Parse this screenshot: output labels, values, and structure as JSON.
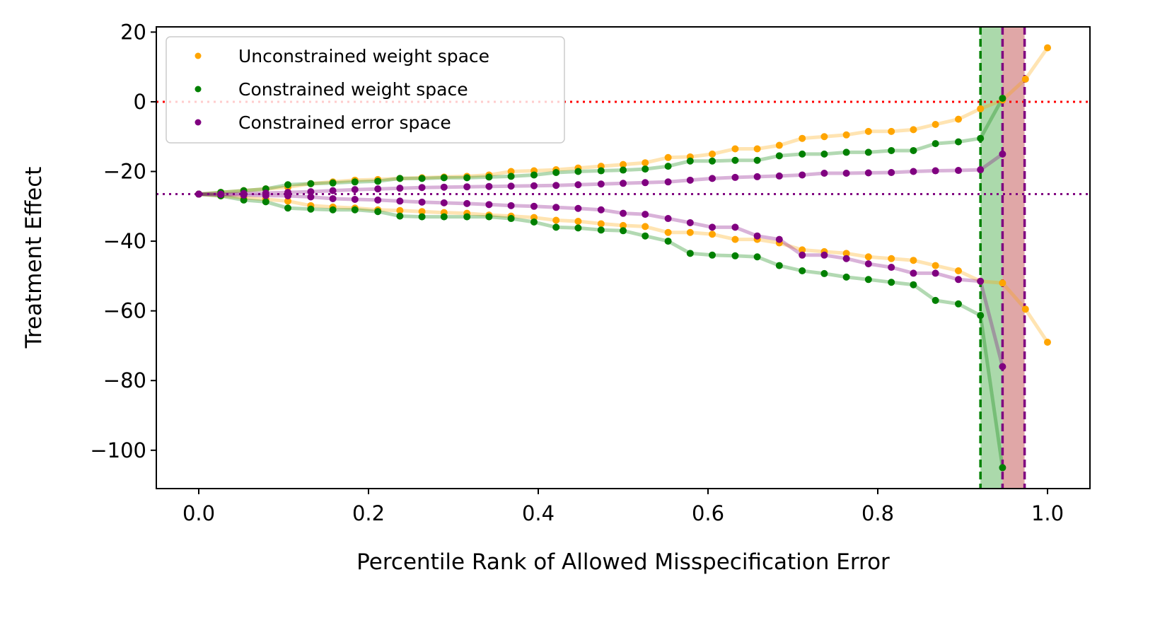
{
  "chart_data": {
    "type": "line",
    "xlabel": "Percentile Rank of Allowed Misspecification Error",
    "ylabel": "Treatment Effect",
    "xlim": [
      -0.05,
      1.05
    ],
    "ylim": [
      -111,
      21.5
    ],
    "xticks": [
      0.0,
      0.2,
      0.4,
      0.6,
      0.8,
      1.0
    ],
    "xtick_labels": [
      "0.0",
      "0.2",
      "0.4",
      "0.6",
      "0.8",
      "1.0"
    ],
    "yticks": [
      20,
      0,
      -20,
      -40,
      -60,
      -80,
      -100
    ],
    "ytick_labels": [
      "20",
      "0",
      "−20",
      "−40",
      "−60",
      "−80",
      "−100"
    ],
    "legend_position": "top-left",
    "reference_lines": [
      {
        "orientation": "horizontal",
        "y": 0,
        "color": "#ff0000",
        "style": "dotted"
      },
      {
        "orientation": "horizontal",
        "y": -26.5,
        "color": "#800080",
        "style": "dotted"
      },
      {
        "orientation": "vertical",
        "x": 0.921,
        "color": "#008000",
        "style": "dashed"
      },
      {
        "orientation": "vertical",
        "x": 0.947,
        "color": "#800080",
        "style": "dashed"
      },
      {
        "orientation": "vertical",
        "x": 0.973,
        "color": "#800080",
        "style": "dashed"
      }
    ],
    "shaded_regions": [
      {
        "x": [
          0.921,
          0.947
        ],
        "color": "#2ca02c"
      },
      {
        "x": [
          0.947,
          0.973
        ],
        "color": "#b22222"
      }
    ],
    "series": [
      {
        "name": "Unconstrained weight space",
        "color": "#ffa500",
        "x": [
          0.0,
          0.026,
          0.053,
          0.079,
          0.105,
          0.132,
          0.158,
          0.184,
          0.211,
          0.237,
          0.263,
          0.289,
          0.316,
          0.342,
          0.368,
          0.395,
          0.421,
          0.447,
          0.474,
          0.5,
          0.526,
          0.553,
          0.579,
          0.605,
          0.632,
          0.658,
          0.684,
          0.711,
          0.737,
          0.763,
          0.789,
          0.816,
          0.842,
          0.868,
          0.895,
          0.921,
          0.947,
          0.974,
          1.0
        ],
        "upper": [
          -26.5,
          -26.0,
          -25.5,
          -25.0,
          -24.5,
          -23.5,
          -23.0,
          -22.5,
          -22.3,
          -22.0,
          -21.8,
          -21.6,
          -21.4,
          -21.0,
          -20.0,
          -19.8,
          -19.5,
          -19.0,
          -18.5,
          -18.0,
          -17.5,
          -16.0,
          -15.8,
          -15.0,
          -13.5,
          -13.5,
          -12.5,
          -10.5,
          -10.0,
          -9.5,
          -8.5,
          -8.5,
          -8.0,
          -6.5,
          -5.0,
          -2.0,
          0.5,
          6.5,
          15.5
        ],
        "lower": [
          -26.5,
          -27.0,
          -27.5,
          -28.0,
          -28.5,
          -29.8,
          -30.2,
          -30.5,
          -31.0,
          -31.2,
          -31.5,
          -31.8,
          -32.0,
          -32.5,
          -32.8,
          -33.2,
          -34.0,
          -34.3,
          -35.0,
          -35.5,
          -35.8,
          -37.5,
          -37.5,
          -38.0,
          -39.5,
          -39.5,
          -40.5,
          -42.5,
          -43.0,
          -43.5,
          -44.5,
          -45.0,
          -45.5,
          -47.0,
          -48.5,
          -51.5,
          -52.0,
          -59.5,
          -69.0
        ]
      },
      {
        "name": "Constrained weight space",
        "color": "#008000",
        "x": [
          0.0,
          0.026,
          0.053,
          0.079,
          0.105,
          0.132,
          0.158,
          0.184,
          0.211,
          0.237,
          0.263,
          0.289,
          0.316,
          0.342,
          0.368,
          0.395,
          0.421,
          0.447,
          0.474,
          0.5,
          0.526,
          0.553,
          0.579,
          0.605,
          0.632,
          0.658,
          0.684,
          0.711,
          0.737,
          0.763,
          0.789,
          0.816,
          0.842,
          0.868,
          0.895,
          0.921,
          0.947
        ],
        "upper": [
          -26.5,
          -26.0,
          -25.5,
          -25.0,
          -23.8,
          -23.5,
          -23.3,
          -23.0,
          -22.8,
          -22.0,
          -22.0,
          -21.8,
          -21.8,
          -21.6,
          -21.4,
          -21.0,
          -20.3,
          -20.0,
          -19.8,
          -19.6,
          -19.3,
          -18.5,
          -17.0,
          -17.0,
          -16.8,
          -16.8,
          -15.5,
          -15.0,
          -15.0,
          -14.5,
          -14.5,
          -14.0,
          -14.0,
          -12.0,
          -11.5,
          -10.5,
          1.0
        ],
        "lower": [
          -26.5,
          -27.0,
          -28.2,
          -28.7,
          -30.5,
          -30.8,
          -31.0,
          -31.0,
          -31.5,
          -32.8,
          -33.0,
          -33.0,
          -33.0,
          -33.0,
          -33.5,
          -34.5,
          -36.0,
          -36.2,
          -36.8,
          -37.0,
          -38.5,
          -40.0,
          -43.5,
          -44.0,
          -44.2,
          -44.5,
          -47.0,
          -48.5,
          -49.3,
          -50.3,
          -51.0,
          -51.8,
          -52.5,
          -57.0,
          -58.0,
          -61.3,
          -105.0
        ]
      },
      {
        "name": "Constrained error space",
        "color": "#800080",
        "x": [
          0.0,
          0.026,
          0.053,
          0.079,
          0.105,
          0.132,
          0.158,
          0.184,
          0.211,
          0.237,
          0.263,
          0.289,
          0.316,
          0.342,
          0.368,
          0.395,
          0.421,
          0.447,
          0.474,
          0.5,
          0.526,
          0.553,
          0.579,
          0.605,
          0.632,
          0.658,
          0.684,
          0.711,
          0.737,
          0.763,
          0.789,
          0.816,
          0.842,
          0.868,
          0.895,
          0.921,
          0.947
        ],
        "upper": [
          -26.5,
          -26.5,
          -26.3,
          -26.2,
          -26.0,
          -25.8,
          -25.5,
          -25.2,
          -25.0,
          -24.8,
          -24.6,
          -24.5,
          -24.4,
          -24.3,
          -24.2,
          -24.1,
          -24.0,
          -23.8,
          -23.6,
          -23.4,
          -23.2,
          -23.0,
          -22.5,
          -22.0,
          -21.7,
          -21.5,
          -21.3,
          -21.0,
          -20.5,
          -20.5,
          -20.4,
          -20.3,
          -20.0,
          -19.8,
          -19.7,
          -19.5,
          -15.0
        ],
        "lower": [
          -26.5,
          -26.6,
          -26.8,
          -26.9,
          -27.0,
          -27.3,
          -27.8,
          -28.0,
          -28.2,
          -28.5,
          -28.8,
          -29.0,
          -29.2,
          -29.5,
          -29.8,
          -30.0,
          -30.3,
          -30.6,
          -31.0,
          -32.0,
          -32.3,
          -33.5,
          -34.7,
          -36.0,
          -36.0,
          -38.5,
          -39.5,
          -44.0,
          -44.0,
          -45.0,
          -46.5,
          -47.5,
          -49.2,
          -49.2,
          -51.0,
          -51.5,
          -76.0
        ]
      }
    ]
  }
}
